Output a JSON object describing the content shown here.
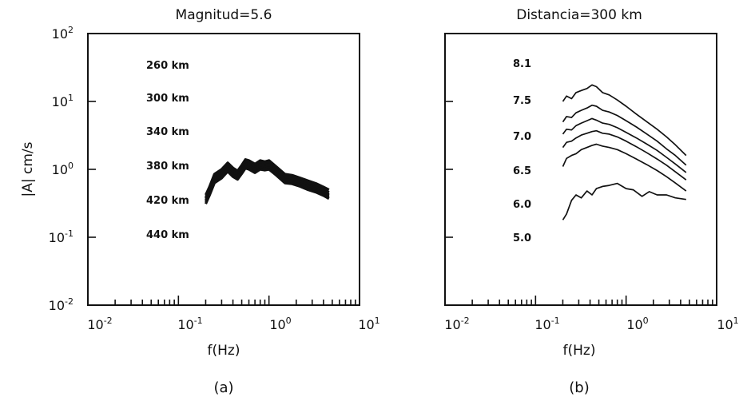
{
  "figure": {
    "panels": [
      {
        "id": "a",
        "title": "Magnitud=5.6",
        "ylabel": "|A| cm/s",
        "xlabel": "f(Hz)",
        "sublabel": "(a)",
        "x_ticks": [
          "10-2",
          "10-1",
          "100",
          "101"
        ],
        "y_ticks": [
          "102",
          "101",
          "100",
          "10-1",
          "10-2"
        ],
        "curve_labels": [
          "260 km",
          "300 km",
          "340 km",
          "380 km",
          "420 km",
          "440 km"
        ]
      },
      {
        "id": "b",
        "title": "Distancia=300 km",
        "xlabel": "f(Hz)",
        "sublabel": "(b)",
        "x_ticks": [
          "10-2",
          "10-1",
          "100",
          "101"
        ],
        "curve_labels": [
          "8.1",
          "7.5",
          "7.0",
          "6.5",
          "6.0",
          "5.0"
        ]
      }
    ]
  },
  "chart_data": [
    {
      "type": "line",
      "title": "Magnitud=5.6",
      "xlabel": "f(Hz)",
      "ylabel": "|A| cm/s",
      "xscale": "log",
      "yscale": "log",
      "xlim": [
        0.01,
        10
      ],
      "ylim": [
        0.01,
        100
      ],
      "grid": false,
      "series": [
        {
          "name": "260 km",
          "x": [
            0.2,
            0.22,
            0.25,
            0.3,
            0.35,
            0.4,
            0.45,
            0.5,
            0.55,
            0.6,
            0.7,
            0.8,
            0.9,
            1.0,
            1.2,
            1.5,
            1.8,
            2.2,
            2.7,
            3.3,
            4.0,
            4.6
          ],
          "y": [
            0.42,
            0.55,
            0.85,
            1.0,
            1.25,
            1.05,
            0.95,
            1.15,
            1.4,
            1.35,
            1.2,
            1.35,
            1.3,
            1.35,
            1.1,
            0.85,
            0.82,
            0.75,
            0.68,
            0.62,
            0.55,
            0.5
          ]
        },
        {
          "name": "300 km",
          "x": [
            0.2,
            0.22,
            0.25,
            0.3,
            0.35,
            0.4,
            0.45,
            0.5,
            0.55,
            0.6,
            0.7,
            0.8,
            0.9,
            1.0,
            1.2,
            1.5,
            1.8,
            2.2,
            2.7,
            3.3,
            4.0,
            4.6
          ],
          "y": [
            0.39,
            0.51,
            0.79,
            0.93,
            1.16,
            0.98,
            0.89,
            1.07,
            1.31,
            1.26,
            1.12,
            1.26,
            1.21,
            1.26,
            1.03,
            0.8,
            0.77,
            0.7,
            0.63,
            0.57,
            0.51,
            0.46
          ]
        },
        {
          "name": "340 km",
          "x": [
            0.2,
            0.22,
            0.25,
            0.3,
            0.35,
            0.4,
            0.45,
            0.5,
            0.55,
            0.6,
            0.7,
            0.8,
            0.9,
            1.0,
            1.2,
            1.5,
            1.8,
            2.2,
            2.7,
            3.3,
            4.0,
            4.6
          ],
          "y": [
            0.37,
            0.48,
            0.75,
            0.88,
            1.1,
            0.93,
            0.84,
            1.01,
            1.23,
            1.19,
            1.06,
            1.19,
            1.14,
            1.19,
            0.97,
            0.75,
            0.72,
            0.66,
            0.59,
            0.54,
            0.48,
            0.43
          ]
        },
        {
          "name": "380 km",
          "x": [
            0.2,
            0.22,
            0.25,
            0.3,
            0.35,
            0.4,
            0.45,
            0.5,
            0.55,
            0.6,
            0.7,
            0.8,
            0.9,
            1.0,
            1.2,
            1.5,
            1.8,
            2.2,
            2.7,
            3.3,
            4.0,
            4.6
          ],
          "y": [
            0.35,
            0.46,
            0.71,
            0.83,
            1.04,
            0.88,
            0.79,
            0.96,
            1.17,
            1.12,
            1.0,
            1.12,
            1.08,
            1.12,
            0.92,
            0.71,
            0.68,
            0.62,
            0.56,
            0.51,
            0.45,
            0.41
          ]
        },
        {
          "name": "420 km",
          "x": [
            0.2,
            0.22,
            0.25,
            0.3,
            0.35,
            0.4,
            0.45,
            0.5,
            0.55,
            0.6,
            0.7,
            0.8,
            0.9,
            1.0,
            1.2,
            1.5,
            1.8,
            2.2,
            2.7,
            3.3,
            4.0,
            4.6
          ],
          "y": [
            0.33,
            0.43,
            0.67,
            0.79,
            0.98,
            0.83,
            0.75,
            0.9,
            1.1,
            1.06,
            0.94,
            1.06,
            1.02,
            1.06,
            0.87,
            0.67,
            0.64,
            0.59,
            0.53,
            0.48,
            0.43,
            0.39
          ]
        },
        {
          "name": "440 km",
          "x": [
            0.2,
            0.22,
            0.25,
            0.3,
            0.35,
            0.4,
            0.45,
            0.5,
            0.55,
            0.6,
            0.7,
            0.8,
            0.9,
            1.0,
            1.2,
            1.5,
            1.8,
            2.2,
            2.7,
            3.3,
            4.0,
            4.6
          ],
          "y": [
            0.31,
            0.41,
            0.63,
            0.74,
            0.93,
            0.78,
            0.71,
            0.86,
            1.04,
            1.0,
            0.89,
            1.0,
            0.97,
            1.0,
            0.82,
            0.63,
            0.61,
            0.56,
            0.5,
            0.46,
            0.41,
            0.37
          ]
        }
      ]
    },
    {
      "type": "line",
      "title": "Distancia=300 km",
      "xlabel": "f(Hz)",
      "xscale": "log",
      "yscale": "log",
      "xlim": [
        0.01,
        10
      ],
      "ylim": [
        0.01,
        100
      ],
      "grid": false,
      "series": [
        {
          "name": "8.1",
          "x": [
            0.2,
            0.22,
            0.25,
            0.28,
            0.32,
            0.37,
            0.42,
            0.47,
            0.55,
            0.65,
            0.8,
            1.0,
            1.3,
            1.7,
            2.2,
            2.8,
            3.5,
            4.6
          ],
          "y": [
            10.0,
            12.0,
            11.0,
            13.5,
            14.5,
            15.5,
            17.5,
            16.5,
            13.5,
            12.5,
            10.5,
            8.5,
            6.5,
            5.0,
            3.9,
            3.0,
            2.3,
            1.6
          ]
        },
        {
          "name": "7.5",
          "x": [
            0.2,
            0.22,
            0.25,
            0.28,
            0.32,
            0.37,
            0.42,
            0.47,
            0.55,
            0.65,
            0.8,
            1.0,
            1.3,
            1.7,
            2.2,
            2.8,
            3.5,
            4.6
          ],
          "y": [
            5.0,
            6.0,
            5.8,
            6.8,
            7.4,
            8.0,
            8.8,
            8.5,
            7.4,
            7.0,
            6.2,
            5.2,
            4.2,
            3.3,
            2.6,
            2.0,
            1.6,
            1.15
          ]
        },
        {
          "name": "7.0",
          "x": [
            0.2,
            0.22,
            0.25,
            0.28,
            0.32,
            0.37,
            0.42,
            0.47,
            0.55,
            0.65,
            0.8,
            1.0,
            1.3,
            1.7,
            2.2,
            2.8,
            3.5,
            4.6
          ],
          "y": [
            3.3,
            3.9,
            3.8,
            4.4,
            4.8,
            5.2,
            5.6,
            5.3,
            4.8,
            4.6,
            4.1,
            3.5,
            2.9,
            2.35,
            1.9,
            1.5,
            1.2,
            0.9
          ]
        },
        {
          "name": "6.5",
          "x": [
            0.2,
            0.22,
            0.25,
            0.28,
            0.32,
            0.37,
            0.42,
            0.47,
            0.55,
            0.65,
            0.8,
            1.0,
            1.3,
            1.7,
            2.2,
            2.8,
            3.5,
            4.6
          ],
          "y": [
            2.1,
            2.5,
            2.6,
            2.9,
            3.2,
            3.4,
            3.6,
            3.7,
            3.4,
            3.3,
            3.0,
            2.6,
            2.15,
            1.75,
            1.42,
            1.15,
            0.92,
            0.7
          ]
        },
        {
          "name": "6.0",
          "x": [
            0.2,
            0.22,
            0.25,
            0.28,
            0.32,
            0.37,
            0.42,
            0.47,
            0.55,
            0.65,
            0.8,
            1.0,
            1.3,
            1.7,
            2.2,
            2.8,
            3.5,
            4.6
          ],
          "y": [
            1.1,
            1.45,
            1.6,
            1.7,
            1.95,
            2.1,
            2.25,
            2.35,
            2.2,
            2.1,
            1.95,
            1.7,
            1.42,
            1.17,
            0.96,
            0.78,
            0.63,
            0.48
          ]
        },
        {
          "name": "5.0",
          "x": [
            0.2,
            0.22,
            0.25,
            0.28,
            0.32,
            0.37,
            0.42,
            0.47,
            0.55,
            0.65,
            0.8,
            1.0,
            1.2,
            1.5,
            1.8,
            2.2,
            2.8,
            3.5,
            4.6
          ],
          "y": [
            0.18,
            0.22,
            0.35,
            0.42,
            0.38,
            0.48,
            0.42,
            0.52,
            0.56,
            0.58,
            0.62,
            0.52,
            0.5,
            0.4,
            0.47,
            0.42,
            0.42,
            0.38,
            0.36
          ]
        }
      ]
    }
  ]
}
